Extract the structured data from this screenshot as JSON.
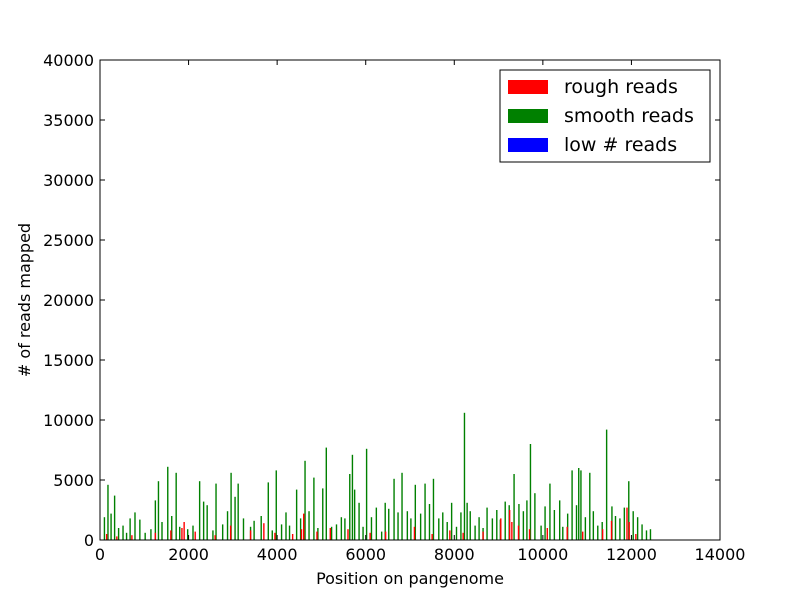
{
  "chart_data": {
    "type": "bar",
    "title": "",
    "xlabel": "Position on pangenome",
    "ylabel": "# of reads mapped",
    "xlim": [
      0,
      14000
    ],
    "ylim": [
      0,
      40000
    ],
    "xticks": [
      0,
      2000,
      4000,
      6000,
      8000,
      10000,
      12000,
      14000
    ],
    "yticks": [
      0,
      5000,
      10000,
      15000,
      20000,
      25000,
      30000,
      35000,
      40000
    ],
    "legend_position": "top-right",
    "grid": false,
    "series": [
      {
        "name": "rough reads",
        "color": "#ff0000",
        "x": [
          150,
          380,
          720,
          1250,
          1600,
          1850,
          1900,
          2150,
          2600,
          2950,
          3400,
          3700,
          3950,
          4350,
          4550,
          4600,
          4900,
          5200,
          5600,
          6100,
          6450,
          7100,
          7500,
          7900,
          8200,
          8650,
          9050,
          9250,
          9300,
          9450,
          9700,
          10100,
          10550,
          10900,
          11350,
          11550,
          11900,
          11950,
          12100
        ],
        "values": [
          500,
          300,
          400,
          600,
          800,
          1000,
          1500,
          700,
          400,
          1200,
          800,
          1400,
          600,
          500,
          900,
          2200,
          700,
          1000,
          900,
          600,
          700,
          1100,
          500,
          800,
          600,
          700,
          1800,
          2500,
          1500,
          1200,
          900,
          1000,
          1100,
          700,
          900,
          1600,
          2700,
          1500,
          500
        ]
      },
      {
        "name": "smooth reads",
        "color": "#008000",
        "x": [
          100,
          180,
          250,
          330,
          420,
          520,
          600,
          680,
          790,
          900,
          1020,
          1150,
          1250,
          1320,
          1400,
          1530,
          1620,
          1720,
          1800,
          1980,
          2100,
          2250,
          2340,
          2420,
          2550,
          2620,
          2770,
          2880,
          2960,
          3050,
          3120,
          3240,
          3400,
          3480,
          3640,
          3800,
          3890,
          3980,
          4100,
          4200,
          4280,
          4440,
          4530,
          4630,
          4720,
          4830,
          4920,
          5030,
          5110,
          5230,
          5340,
          5450,
          5530,
          5640,
          5700,
          5750,
          5850,
          5940,
          6020,
          6130,
          6240,
          6360,
          6440,
          6520,
          6640,
          6730,
          6820,
          6940,
          7020,
          7120,
          7240,
          7340,
          7440,
          7530,
          7650,
          7740,
          7840,
          7940,
          8050,
          8150,
          8230,
          8290,
          8360,
          8470,
          8560,
          8650,
          8740,
          8860,
          8960,
          9040,
          9150,
          9240,
          9350,
          9460,
          9560,
          9640,
          9720,
          9820,
          9960,
          10050,
          10160,
          10260,
          10380,
          10450,
          10560,
          10660,
          10760,
          10810,
          10860,
          10960,
          11060,
          11140,
          11240,
          11340,
          11440,
          11560,
          11640,
          11740,
          11840,
          11940,
          12040,
          12140,
          12240,
          12340,
          12430
        ],
        "values": [
          1900,
          4600,
          2200,
          3700,
          1000,
          1200,
          600,
          1800,
          2300,
          1700,
          600,
          900,
          3300,
          4900,
          1500,
          6100,
          2000,
          5600,
          1100,
          900,
          1200,
          4900,
          3200,
          2900,
          800,
          4700,
          1300,
          2400,
          5600,
          3600,
          4700,
          1800,
          1100,
          1600,
          2000,
          4800,
          800,
          5800,
          1300,
          2300,
          1200,
          4200,
          1800,
          6600,
          2400,
          5200,
          1000,
          4300,
          7700,
          1100,
          1300,
          1900,
          1800,
          5500,
          7100,
          4200,
          3100,
          1100,
          7600,
          1900,
          2700,
          700,
          3100,
          2600,
          5100,
          2300,
          5600,
          2400,
          1800,
          4600,
          2200,
          4700,
          3000,
          5100,
          1800,
          2300,
          1500,
          3100,
          1100,
          2300,
          10600,
          3100,
          2400,
          1200,
          1900,
          1000,
          2700,
          1800,
          2500,
          1700,
          3200,
          2900,
          5500,
          3000,
          2400,
          3300,
          8000,
          3900,
          1200,
          2800,
          4700,
          2500,
          3300,
          1100,
          2200,
          5800,
          2900,
          6000,
          5800,
          1900,
          5600,
          2400,
          1200,
          1500,
          9200,
          2800,
          2000,
          1800,
          2700,
          4900,
          2400,
          1900,
          1300,
          800,
          900
        ]
      },
      {
        "name": "low # reads",
        "color": "#0000ff",
        "x": [],
        "values": []
      }
    ]
  }
}
